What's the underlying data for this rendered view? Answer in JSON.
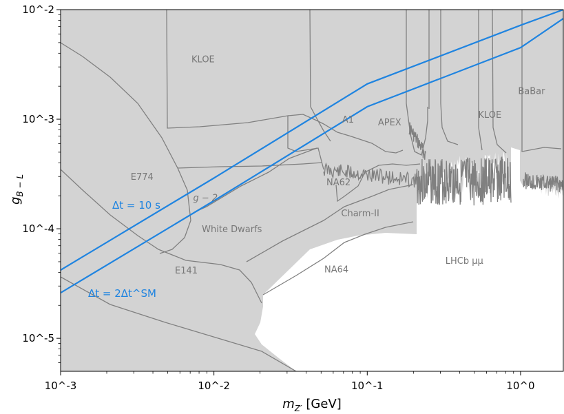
{
  "chart_data": {
    "type": "line",
    "xscale": "log",
    "yscale": "log",
    "xlim": [
      0.001,
      1.9
    ],
    "ylim": [
      5e-06,
      0.01
    ],
    "xlabel": "m_{Z'} [GeV]",
    "ylabel": "g_{B-L}",
    "x_ticks": [
      0.001,
      0.01,
      0.1,
      1
    ],
    "x_tick_labels": [
      "10^-3",
      "10^-2",
      "10^-1",
      "10^0"
    ],
    "y_ticks": [
      1e-05,
      0.0001,
      0.001,
      0.01
    ],
    "y_tick_labels": [
      "10^-5",
      "10^-4",
      "10^-3",
      "10^-2"
    ],
    "grid": false,
    "excluded_region_color": "#d3d3d3",
    "boundary_color": "#808080",
    "series_color": "#1f84e0",
    "series": [
      {
        "name": "Δt = 10 s",
        "x": [
          0.001,
          0.01,
          0.1,
          1,
          1.9
        ],
        "y": [
          4.2e-05,
          0.00029,
          0.0021,
          0.0072,
          0.01
        ]
      },
      {
        "name": "Δt = 2Δt^SM",
        "x": [
          0.001,
          0.01,
          0.1,
          1,
          1.9
        ],
        "y": [
          2.6e-05,
          0.00018,
          0.0013,
          0.0045,
          0.0083
        ]
      }
    ],
    "region_labels": [
      {
        "text": "KLOE",
        "x": 0.0085,
        "y": 0.0033
      },
      {
        "text": "E774",
        "x": 0.0034,
        "y": 0.00028
      },
      {
        "text": "g − 2",
        "x": 0.0088,
        "y": 0.00018
      },
      {
        "text": "White Dwarfs",
        "x": 0.0131,
        "y": 9.3e-05
      },
      {
        "text": "E141",
        "x": 0.0066,
        "y": 3.9e-05
      },
      {
        "text": "NA62",
        "x": 0.065,
        "y": 0.00025
      },
      {
        "text": "A1",
        "x": 0.075,
        "y": 0.00093
      },
      {
        "text": "APEX",
        "x": 0.14,
        "y": 0.00088
      },
      {
        "text": "Charm-II",
        "x": 0.09,
        "y": 0.00013
      },
      {
        "text": "NA64",
        "x": 0.063,
        "y": 4e-05
      },
      {
        "text": "KLOE",
        "x": 0.63,
        "y": 0.00103
      },
      {
        "text": "BaBar",
        "x": 1.18,
        "y": 0.0017
      },
      {
        "text": "LHCb μμ",
        "x": 0.43,
        "y": 4.8e-05
      }
    ]
  }
}
